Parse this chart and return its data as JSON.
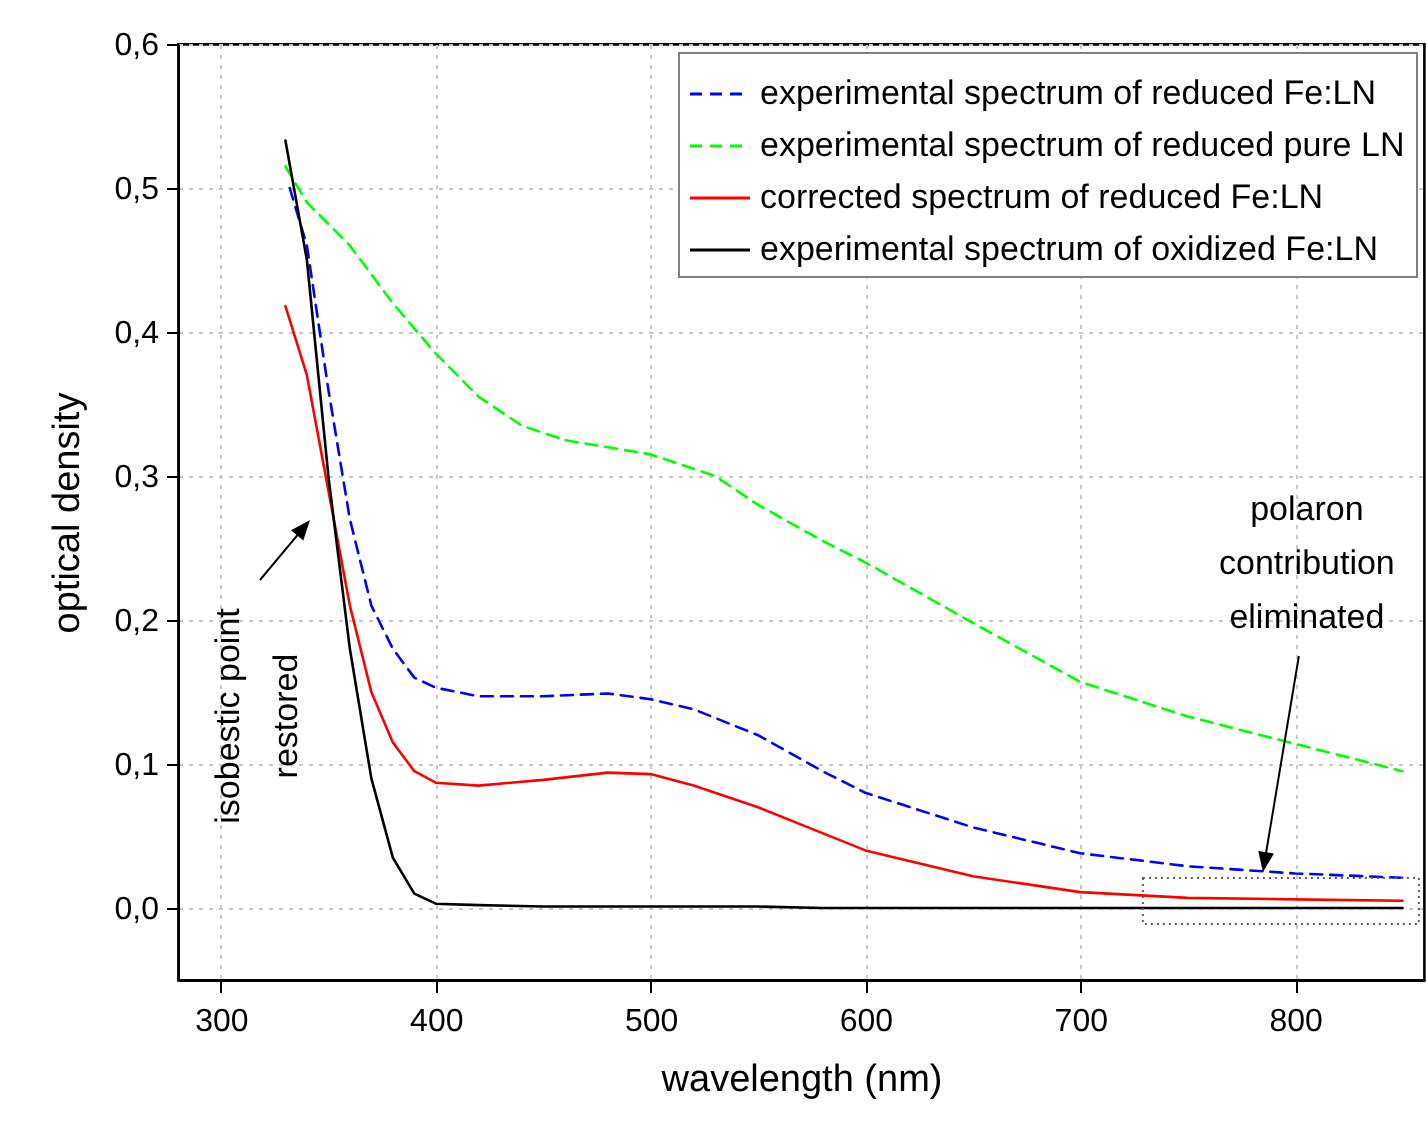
{
  "chart_data": {
    "type": "line",
    "xlabel": "wavelength (nm)",
    "ylabel": "optical density",
    "xlim": [
      280,
      860
    ],
    "xticks": [
      300,
      400,
      500,
      600,
      700,
      800
    ],
    "ylim": [
      -0.05,
      0.6
    ],
    "yticks": [
      {
        "value": 0,
        "label": "0,0"
      },
      {
        "value": 0.1,
        "label": "0,1"
      },
      {
        "value": 0.2,
        "label": "0,2"
      },
      {
        "value": 0.3,
        "label": "0,3"
      },
      {
        "value": 0.4,
        "label": "0,4"
      },
      {
        "value": 0.5,
        "label": "0,5"
      },
      {
        "value": 0.6,
        "label": "0,6"
      }
    ],
    "grid": true,
    "legend": "top right",
    "x": [
      330,
      340,
      350,
      360,
      370,
      380,
      390,
      400,
      420,
      450,
      480,
      500,
      520,
      550,
      580,
      600,
      650,
      700,
      750,
      800,
      850
    ],
    "series": [
      {
        "name": "experimental spectrum of reduced Fe:LN",
        "color": "#0000ff",
        "line_style": "dashed",
        "x": [
          332,
          340,
          350,
          360,
          370,
          380,
          390,
          400,
          420,
          450,
          480,
          500,
          520,
          550,
          580,
          600,
          650,
          700,
          750,
          800,
          850
        ],
        "values": [
          0.5,
          0.46,
          0.36,
          0.27,
          0.21,
          0.18,
          0.16,
          0.153,
          0.147,
          0.147,
          0.149,
          0.145,
          0.138,
          0.12,
          0.095,
          0.08,
          0.056,
          0.038,
          0.029,
          0.024,
          0.021
        ]
      },
      {
        "name": "experimental spectrum of reduced pure LN",
        "color": "#00ff00",
        "line_style": "dashed",
        "x": [
          330,
          340,
          360,
          380,
          400,
          420,
          440,
          460,
          500,
          530,
          550,
          580,
          600,
          650,
          700,
          750,
          800,
          850
        ],
        "values": [
          0.515,
          0.49,
          0.46,
          0.42,
          0.385,
          0.355,
          0.335,
          0.325,
          0.315,
          0.3,
          0.28,
          0.255,
          0.24,
          0.198,
          0.157,
          0.133,
          0.114,
          0.095
        ]
      },
      {
        "name": "corrected spectrum of reduced Fe:LN",
        "color": "#ff0000",
        "line_style": "solid",
        "values": [
          0.418,
          0.37,
          0.29,
          0.21,
          0.15,
          0.115,
          0.095,
          0.087,
          0.085,
          0.089,
          0.094,
          0.093,
          0.085,
          0.07,
          0.052,
          0.04,
          0.022,
          0.011,
          0.007,
          0.006,
          0.005
        ]
      },
      {
        "name": "experimental spectrum of oxidized Fe:LN",
        "color": "#000000",
        "line_style": "solid",
        "values": [
          0.533,
          0.45,
          0.3,
          0.18,
          0.09,
          0.035,
          0.01,
          0.003,
          0.002,
          0.001,
          0.001,
          0.001,
          0.001,
          0.001,
          0.0,
          0.0,
          0.0,
          0.0,
          0.0,
          0.0,
          0.0
        ]
      }
    ],
    "annotations": [
      "isobestic point restored",
      {
        "text": "polaron contribution eliminated",
        "x": 785,
        "y": 0.025
      }
    ]
  }
}
